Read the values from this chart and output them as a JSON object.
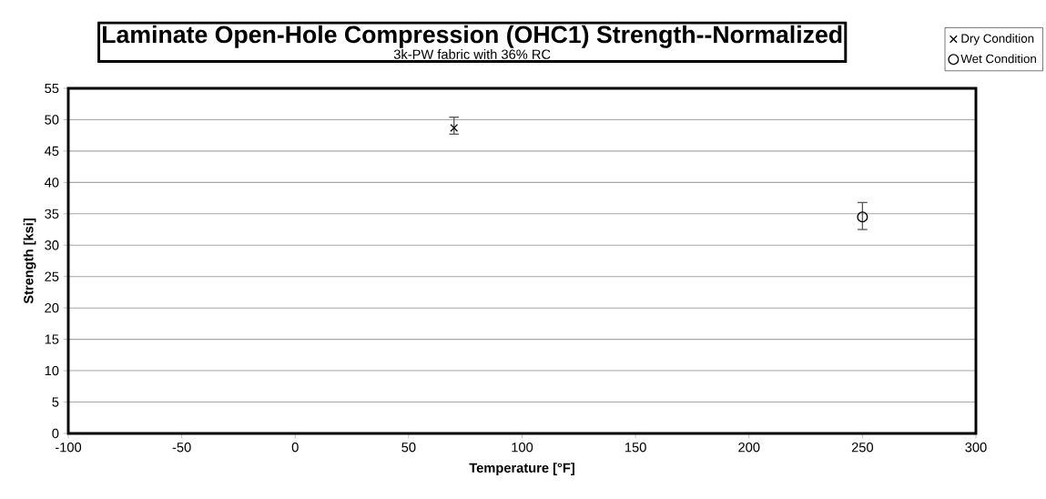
{
  "chart_data": {
    "type": "scatter",
    "title": "Laminate Open-Hole Compression (OHC1) Strength--Normalized",
    "subtitle": "3k-PW fabric with 36% RC",
    "xlabel": "Temperature [°F]",
    "ylabel": "Strength [ksi]",
    "series": [
      {
        "name": "Dry Condition",
        "color": "#000000",
        "marker": "cross",
        "x": [
          70
        ],
        "values": [
          48.7
        ],
        "errors": [
          [
            47.7,
            50.4
          ]
        ]
      },
      {
        "name": "Wet Condition",
        "color": "#000000",
        "marker": "circle",
        "x": [
          250
        ],
        "values": [
          34.5
        ],
        "errors": [
          [
            32.5,
            36.8
          ]
        ]
      }
    ],
    "xlim": [
      -100,
      300
    ],
    "xticks": [
      -100,
      -50,
      0,
      50,
      100,
      150,
      200,
      250,
      300
    ],
    "ylim": [
      0,
      55
    ],
    "yticks": [
      0,
      5,
      10,
      15,
      20,
      25,
      30,
      35,
      40,
      45,
      50,
      55
    ],
    "grid": "y",
    "legend": "top right"
  }
}
